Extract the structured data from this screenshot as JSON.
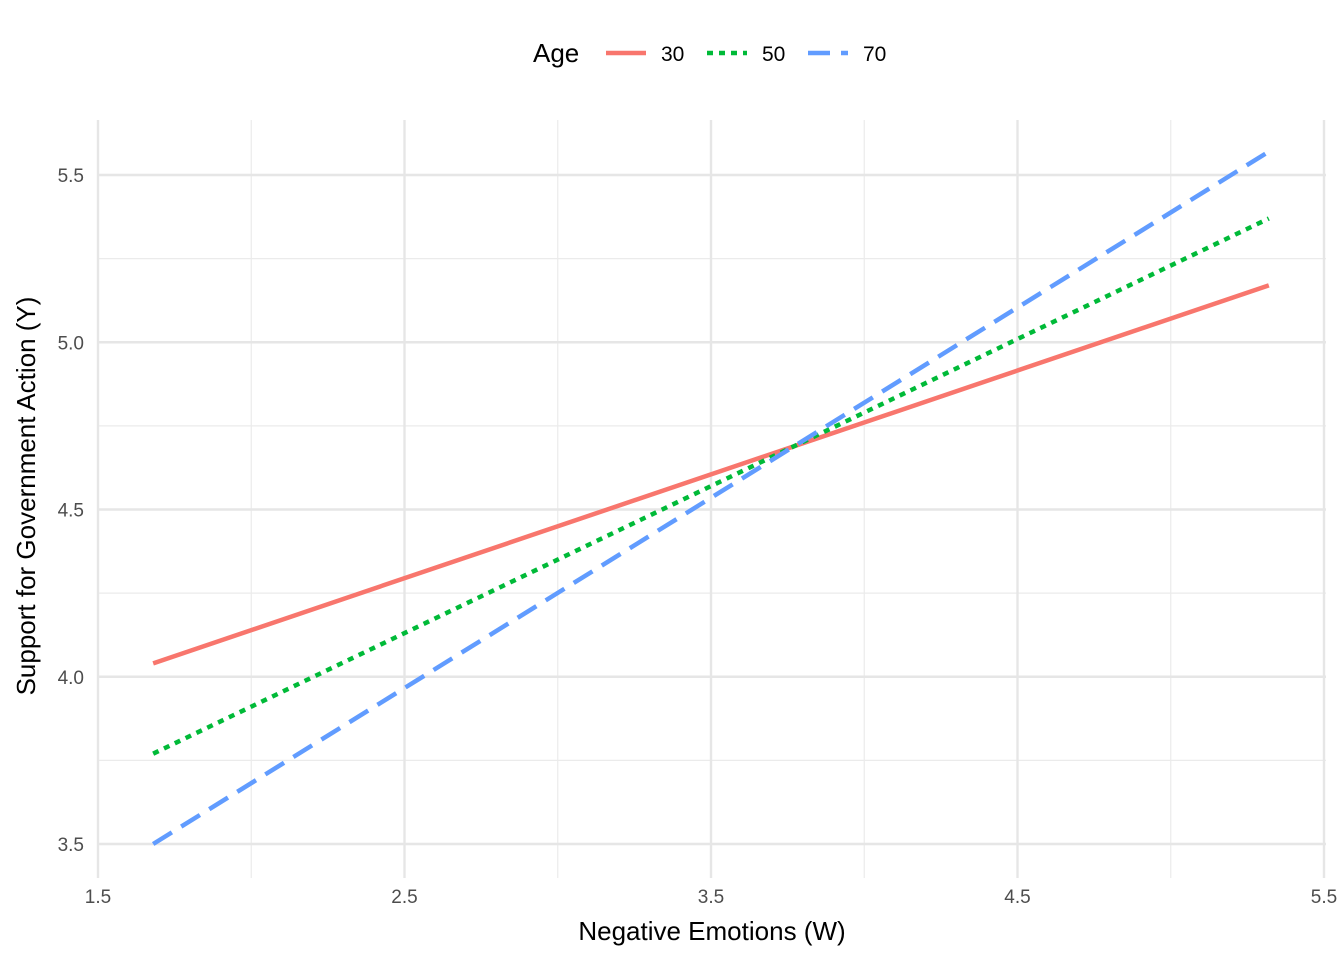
{
  "chart_data": {
    "type": "line",
    "xlabel": "Negative Emotions (W)",
    "ylabel": "Support for Government Action (Y)",
    "xlim": [
      1.5,
      5.5
    ],
    "ylim": [
      3.5,
      5.5
    ],
    "xticks": [
      "1.5",
      "2.5",
      "3.5",
      "4.5",
      "5.5"
    ],
    "yticks": [
      "3.5",
      "4.0",
      "4.5",
      "5.0",
      "5.5"
    ],
    "grid": true,
    "legend": {
      "title": "Age",
      "position": "top",
      "entries": [
        "30",
        "50",
        "70"
      ]
    },
    "x": [
      1.68,
      5.32
    ],
    "series": [
      {
        "name": "30",
        "values": [
          4.04,
          5.17
        ],
        "color": "#F8766D",
        "linestyle": "solid"
      },
      {
        "name": "50",
        "values": [
          3.77,
          5.37
        ],
        "color": "#00BA38",
        "linestyle": "dotted"
      },
      {
        "name": "70",
        "values": [
          3.5,
          5.57
        ],
        "color": "#619CFF",
        "linestyle": "dashed"
      }
    ]
  }
}
